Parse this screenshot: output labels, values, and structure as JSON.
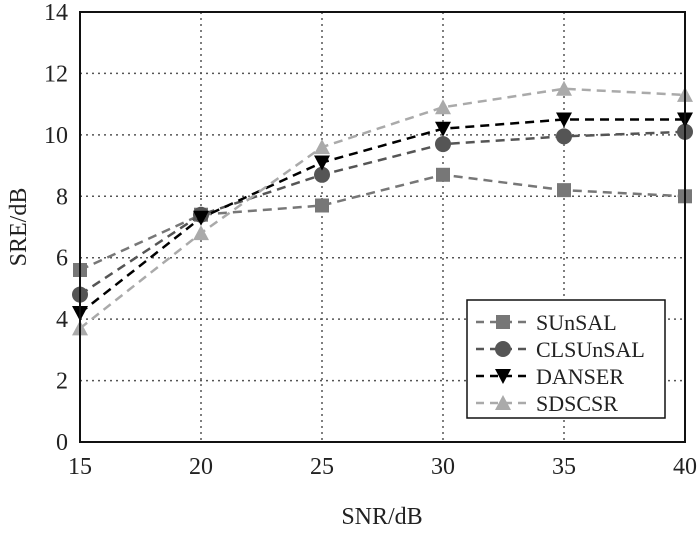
{
  "chart_data": {
    "type": "line",
    "title": "",
    "xlabel": "SNR/dB",
    "ylabel": "SRE/dB",
    "xlim": [
      15,
      40
    ],
    "ylim": [
      0,
      14
    ],
    "x": [
      15,
      20,
      25,
      30,
      35,
      40
    ],
    "xticks": [
      "15",
      "20",
      "25",
      "30",
      "35",
      "40"
    ],
    "yticks": [
      "0",
      "2",
      "4",
      "6",
      "8",
      "10",
      "12",
      "14"
    ],
    "grid": true,
    "legend_position": "bottom-right",
    "series": [
      {
        "name": "SUnSAL",
        "marker": "square",
        "color": "#777777",
        "values": [
          5.6,
          7.4,
          7.7,
          8.7,
          8.2,
          8.0
        ]
      },
      {
        "name": "CLSUnSAL",
        "marker": "circle",
        "color": "#555555",
        "values": [
          4.8,
          7.4,
          8.7,
          9.7,
          9.95,
          10.1
        ]
      },
      {
        "name": "DANSER",
        "marker": "triangle-down",
        "color": "#000000",
        "values": [
          4.2,
          7.3,
          9.1,
          10.2,
          10.5,
          10.5
        ]
      },
      {
        "name": "SDSCSR",
        "marker": "triangle-up",
        "color": "#aaaaaa",
        "values": [
          3.7,
          6.8,
          9.6,
          10.9,
          11.5,
          11.3
        ]
      }
    ]
  }
}
